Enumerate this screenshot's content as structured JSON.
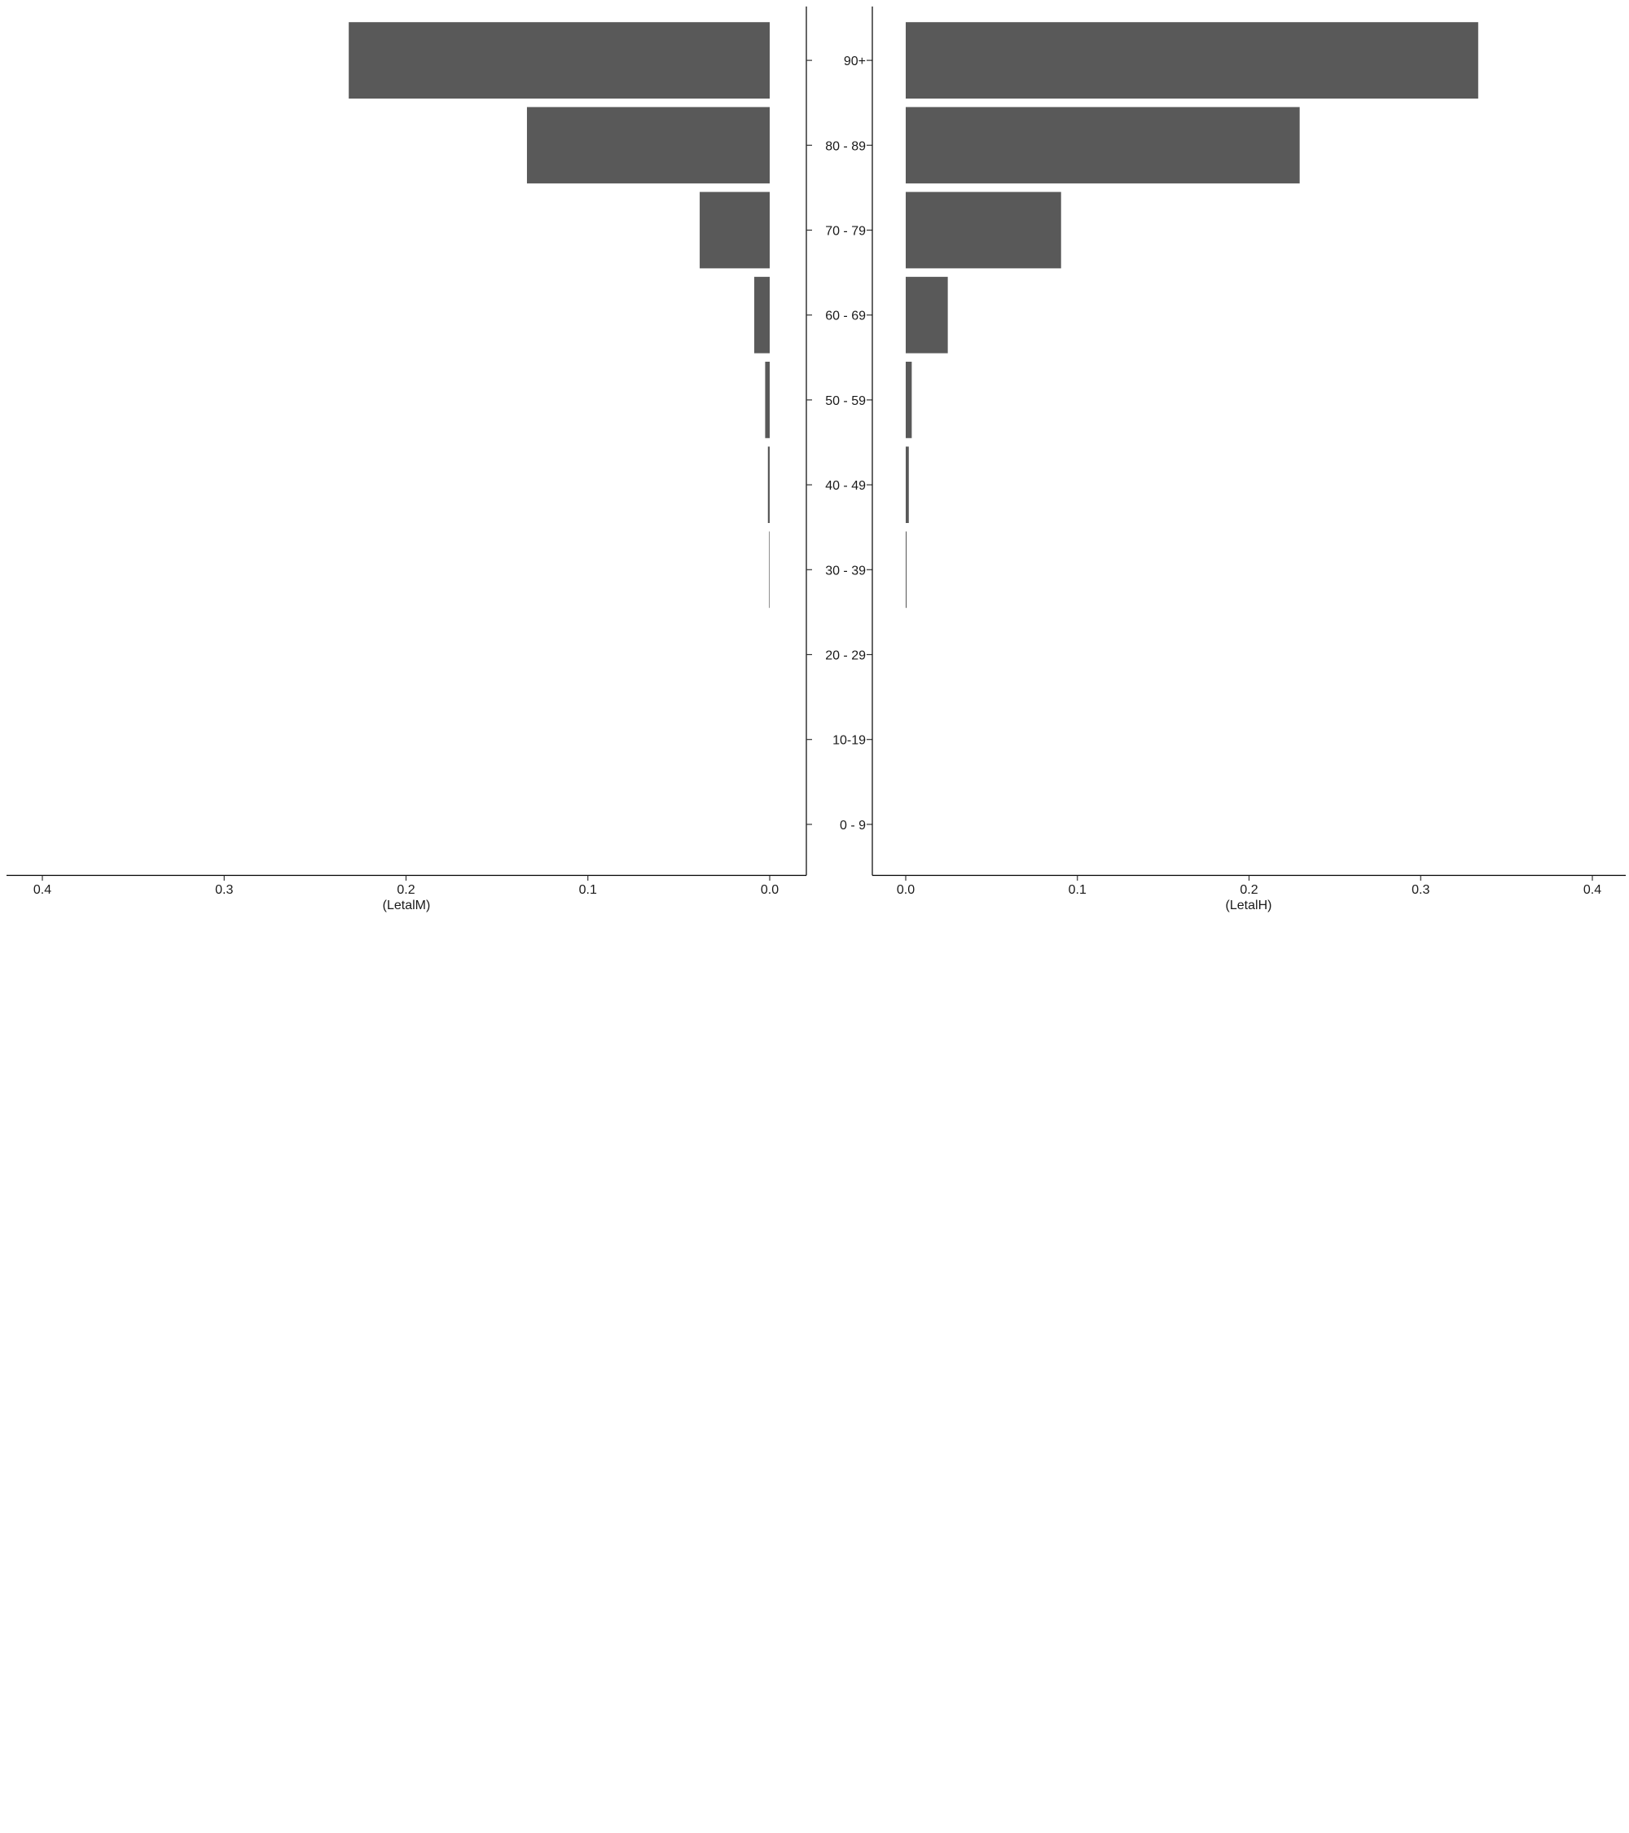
{
  "chart_data": {
    "type": "bar",
    "orientation": "horizontal",
    "layout": "back-to-back population pyramid",
    "categories": [
      "0 - 9",
      "10-19",
      "20 - 29",
      "30 - 39",
      "40 - 49",
      "50 - 59",
      "60 - 69",
      "70 - 79",
      "80 - 89",
      "90+"
    ],
    "bar_color": "#595959",
    "panels": [
      {
        "name": "left",
        "xlabel": "(LetalM)",
        "xlim": [
          0.0,
          0.4
        ],
        "x_reversed": true,
        "x_ticks": [
          "0.4",
          "0.3",
          "0.2",
          "0.1",
          "0.0"
        ],
        "values": [
          0.0,
          0.0,
          0.0,
          0.0003,
          0.001,
          0.0025,
          0.0085,
          0.0385,
          0.1335,
          0.2315
        ]
      },
      {
        "name": "right",
        "xlabel": "(LetalH)",
        "xlim": [
          0.0,
          0.4
        ],
        "x_reversed": false,
        "x_ticks": [
          "0.0",
          "0.1",
          "0.2",
          "0.3",
          "0.4"
        ],
        "values": [
          0.0,
          0.0,
          0.0,
          0.0005,
          0.0018,
          0.0035,
          0.0245,
          0.0905,
          0.2295,
          0.3335
        ]
      }
    ],
    "grid": false,
    "legend": "none"
  }
}
